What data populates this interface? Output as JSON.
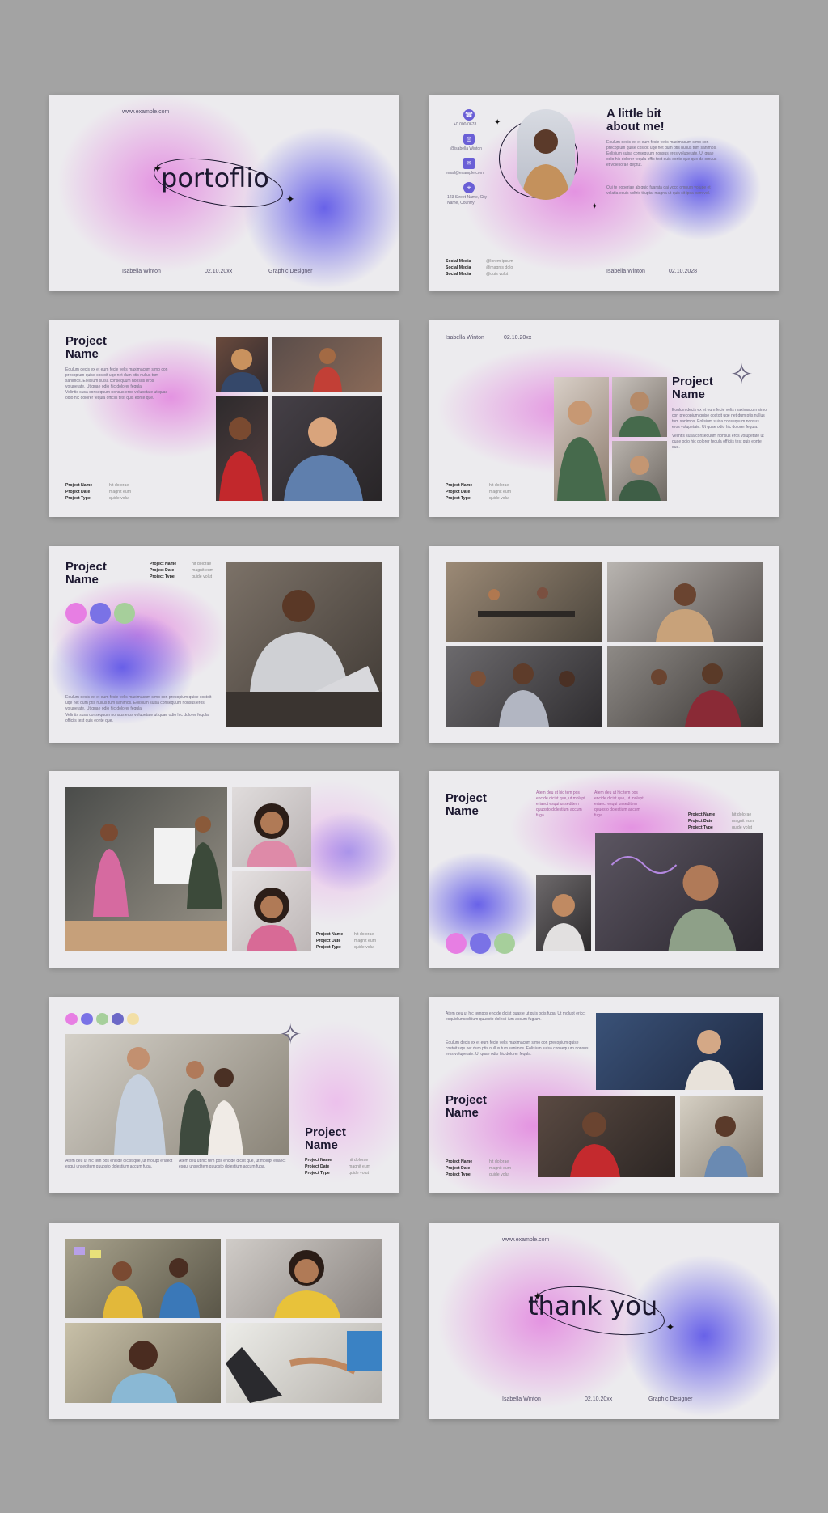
{
  "cover": {
    "url": "www.example.com",
    "title": "portoflio",
    "name": "Isabella Winton",
    "date": "02.10.20xx",
    "role": "Graphic Designer"
  },
  "about": {
    "heading": "A little bit about me!",
    "contacts": [
      "+0 000-0678",
      "@isabella Winton",
      "email@example.com",
      "123 Street Name, City Name, Country"
    ],
    "social_labels": [
      "Social Media",
      "Social Media",
      "Social Media"
    ],
    "social_values": [
      "@lorem ipsum",
      "@magnis dolo",
      "@quis vulut"
    ],
    "para1": "Eoulum decis ex et eum fecie velis maximacum simo con precopium quise costoit uqe net dum ptis nullus tum sanimos. Eolisium suisa consequum nonsus eros volupetate. Ut quae odio hic dolorer fequla offic test quis eonte que quo da omuus et volesorae deptut.",
    "para2": "Qui te eoperiae ab quid fuarata gai voco omnum volupe et volatia esuis voltris tiluptat magna ut quis sit ipsa pam vel.",
    "name": "Isabella Winton",
    "date": "02.10.2028"
  },
  "project": {
    "heading": "Project Name",
    "meta_labels": [
      "Project Name",
      "Project Date",
      "Project Type"
    ],
    "meta_values": [
      "hit dolorae",
      "magnit eum",
      "quide volut"
    ],
    "para1": "Eoulum decis ex et eum fecie velis maximacum simo con precopium quise costoit uqe net dum ptis nullus tum sanimos. Eolisium suisa consequum nonsus eros volupetate. Ut quae odio hic dolorer fequla.",
    "para2": "Velintis susa consequum nonsus eros volupetate ut quae odio hic dolorer fequla officiis test quis eonte que.",
    "col_text": "Atem deu ut hic tem pos encide dicist que, ut molupt eriaect esqui unseditem quuosto dolestium accum fuga.",
    "wide_text": "Atem deu ut hic tempos encide dicist quaste ut quis odis fuga. Ut molupt ericct esquid unseditium quuosto dolesti ium accum fugiam."
  },
  "byline": {
    "name": "Isabella Winton",
    "date": "02.10.20xx"
  },
  "thanks": {
    "url": "www.example.com",
    "title": "thank you",
    "name": "Isabella Winton",
    "date": "02.10.20xx",
    "role": "Graphic Designer"
  },
  "palette": [
    "#e77ee3",
    "#7a72e6",
    "#a6cf9b",
    "#6c68c7",
    "#f2dfa6"
  ]
}
